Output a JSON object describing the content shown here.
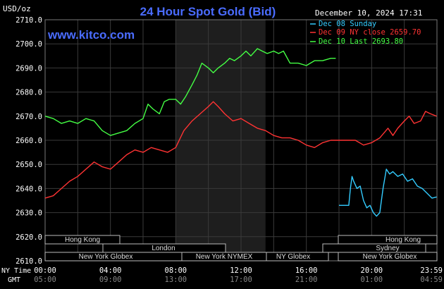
{
  "header": {
    "unit": "USD/oz",
    "title": "24 Hour Spot Gold (Bid)",
    "timestamp": "December 10, 2024 17:31",
    "brand": "www.kitco.com"
  },
  "legend": {
    "items": [
      {
        "label": "Dec 08 Sunday",
        "color": "#33ccff"
      },
      {
        "label": "Dec 09 NY close 2659.70",
        "color": "#ff3333"
      },
      {
        "label": "Dec 10 Last 2693.80",
        "color": "#44ff44"
      }
    ]
  },
  "markets": {
    "row1_left": "Hong Kong",
    "row1_right": "Hong Kong",
    "row2_left": "London",
    "row2_right": "Sydney",
    "row3_left": "New York Globex",
    "row3_mid1": "New York NYMEX",
    "row3_mid2": "NY Globex",
    "row3_right": "New York Globex"
  },
  "time_axis": {
    "ny_label": "NY Time",
    "gmt_label": "GMT",
    "ny_ticks": [
      "00:00",
      "04:00",
      "08:00",
      "12:00",
      "16:00",
      "20:00",
      "23:59"
    ],
    "gmt_ticks": [
      "05:00",
      "09:00",
      "13:00",
      "17:00",
      "21:00",
      "01:00",
      "04:59"
    ]
  },
  "chart_data": {
    "type": "line",
    "title": "24 Hour Spot Gold (Bid)",
    "ylabel": "USD/oz",
    "ylim": [
      2610,
      2710
    ],
    "xlim": [
      0,
      24
    ],
    "y_ticks": [
      "2610.0",
      "2620.0",
      "2630.0",
      "2640.0",
      "2650.0",
      "2660.0",
      "2670.0",
      "2680.0",
      "2690.0",
      "2700.0",
      "2710.0"
    ],
    "grid": true,
    "shaded_region_ny_hours": [
      8.0,
      13.5
    ],
    "series": [
      {
        "name": "Dec 08 Sunday",
        "color": "#33ccff",
        "points": [
          [
            18.0,
            2633.0
          ],
          [
            18.6,
            2633.0
          ],
          [
            18.7,
            2640.0
          ],
          [
            18.8,
            2645.0
          ],
          [
            18.9,
            2643.0
          ],
          [
            19.1,
            2640.0
          ],
          [
            19.3,
            2641.0
          ],
          [
            19.5,
            2635.0
          ],
          [
            19.7,
            2632.0
          ],
          [
            19.9,
            2633.0
          ],
          [
            20.1,
            2630.0
          ],
          [
            20.3,
            2628.5
          ],
          [
            20.5,
            2630.0
          ],
          [
            20.7,
            2640.0
          ],
          [
            20.9,
            2648.0
          ],
          [
            21.1,
            2646.0
          ],
          [
            21.3,
            2647.0
          ],
          [
            21.6,
            2645.0
          ],
          [
            21.9,
            2646.0
          ],
          [
            22.2,
            2643.0
          ],
          [
            22.5,
            2644.0
          ],
          [
            22.8,
            2641.0
          ],
          [
            23.1,
            2640.0
          ],
          [
            23.4,
            2638.0
          ],
          [
            23.7,
            2636.0
          ],
          [
            23.98,
            2636.5
          ]
        ]
      },
      {
        "name": "Dec 09 NY close 2659.70",
        "color": "#ff3333",
        "points": [
          [
            0.0,
            2636.0
          ],
          [
            0.5,
            2637.0
          ],
          [
            1.0,
            2640.0
          ],
          [
            1.5,
            2643.0
          ],
          [
            2.0,
            2645.0
          ],
          [
            2.5,
            2648.0
          ],
          [
            3.0,
            2651.0
          ],
          [
            3.5,
            2649.0
          ],
          [
            4.0,
            2648.0
          ],
          [
            4.5,
            2651.0
          ],
          [
            5.0,
            2654.0
          ],
          [
            5.5,
            2656.0
          ],
          [
            6.0,
            2655.0
          ],
          [
            6.5,
            2657.0
          ],
          [
            7.0,
            2656.0
          ],
          [
            7.5,
            2655.0
          ],
          [
            8.0,
            2657.0
          ],
          [
            8.5,
            2664.0
          ],
          [
            9.0,
            2668.0
          ],
          [
            9.5,
            2671.0
          ],
          [
            10.0,
            2674.0
          ],
          [
            10.3,
            2676.0
          ],
          [
            10.6,
            2674.0
          ],
          [
            11.0,
            2671.0
          ],
          [
            11.5,
            2668.0
          ],
          [
            12.0,
            2669.0
          ],
          [
            12.5,
            2667.0
          ],
          [
            13.0,
            2665.0
          ],
          [
            13.5,
            2664.0
          ],
          [
            14.0,
            2662.0
          ],
          [
            14.5,
            2661.0
          ],
          [
            15.0,
            2661.0
          ],
          [
            15.5,
            2660.0
          ],
          [
            16.0,
            2658.0
          ],
          [
            16.5,
            2657.0
          ],
          [
            17.0,
            2659.0
          ],
          [
            17.5,
            2660.0
          ],
          [
            18.0,
            2660.0
          ],
          [
            18.5,
            2660.0
          ],
          [
            19.0,
            2660.0
          ],
          [
            19.5,
            2658.0
          ],
          [
            20.0,
            2659.0
          ],
          [
            20.5,
            2661.0
          ],
          [
            21.0,
            2665.0
          ],
          [
            21.3,
            2662.0
          ],
          [
            21.6,
            2665.0
          ],
          [
            22.0,
            2668.0
          ],
          [
            22.3,
            2670.0
          ],
          [
            22.6,
            2667.0
          ],
          [
            23.0,
            2668.0
          ],
          [
            23.3,
            2672.0
          ],
          [
            23.6,
            2671.0
          ],
          [
            23.98,
            2670.0
          ]
        ]
      },
      {
        "name": "Dec 10 Last 2693.80",
        "color": "#44ff44",
        "points": [
          [
            0.0,
            2670.0
          ],
          [
            0.5,
            2669.0
          ],
          [
            1.0,
            2667.0
          ],
          [
            1.5,
            2668.0
          ],
          [
            2.0,
            2667.0
          ],
          [
            2.5,
            2669.0
          ],
          [
            3.0,
            2668.0
          ],
          [
            3.5,
            2664.0
          ],
          [
            4.0,
            2662.0
          ],
          [
            4.5,
            2663.0
          ],
          [
            5.0,
            2664.0
          ],
          [
            5.5,
            2667.0
          ],
          [
            6.0,
            2669.0
          ],
          [
            6.3,
            2675.0
          ],
          [
            6.6,
            2673.0
          ],
          [
            7.0,
            2671.0
          ],
          [
            7.3,
            2676.0
          ],
          [
            7.6,
            2677.0
          ],
          [
            8.0,
            2677.0
          ],
          [
            8.3,
            2675.0
          ],
          [
            8.6,
            2678.0
          ],
          [
            9.0,
            2683.0
          ],
          [
            9.3,
            2687.0
          ],
          [
            9.6,
            2692.0
          ],
          [
            10.0,
            2690.0
          ],
          [
            10.3,
            2688.0
          ],
          [
            10.6,
            2690.0
          ],
          [
            11.0,
            2692.0
          ],
          [
            11.3,
            2694.0
          ],
          [
            11.6,
            2693.0
          ],
          [
            12.0,
            2695.0
          ],
          [
            12.3,
            2697.0
          ],
          [
            12.6,
            2695.0
          ],
          [
            13.0,
            2698.0
          ],
          [
            13.3,
            2697.0
          ],
          [
            13.6,
            2696.0
          ],
          [
            14.0,
            2697.0
          ],
          [
            14.3,
            2696.0
          ],
          [
            14.6,
            2697.0
          ],
          [
            15.0,
            2692.0
          ],
          [
            15.5,
            2692.0
          ],
          [
            16.0,
            2691.0
          ],
          [
            16.5,
            2693.0
          ],
          [
            17.0,
            2693.0
          ],
          [
            17.5,
            2694.0
          ],
          [
            17.8,
            2694.0
          ]
        ]
      }
    ]
  }
}
